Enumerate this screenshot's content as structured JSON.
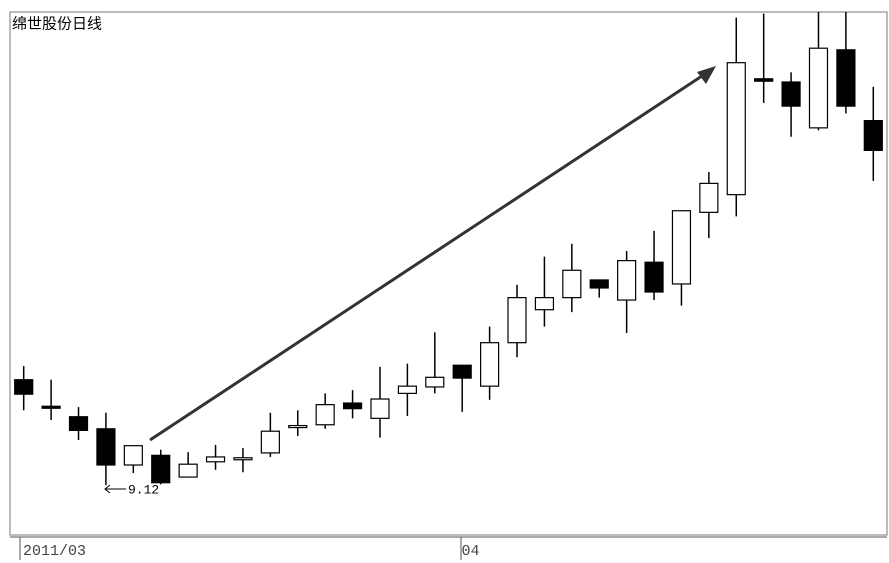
{
  "chart_data": {
    "type": "candlestick",
    "title": "绵世股份日线",
    "categories": [
      "2011/03",
      null,
      null,
      null,
      null,
      null,
      null,
      null,
      null,
      null,
      null,
      null,
      null,
      null,
      null,
      null,
      "04",
      null,
      null,
      null,
      null,
      null,
      null,
      null,
      null,
      null,
      null,
      null,
      null,
      null,
      null,
      null
    ],
    "open": [
      10.43,
      10.1,
      9.97,
      9.82,
      9.37,
      9.49,
      9.22,
      9.41,
      9.45,
      9.52,
      9.85,
      9.87,
      10.14,
      9.95,
      10.26,
      10.34,
      10.61,
      10.35,
      10.89,
      11.3,
      11.45,
      11.67,
      11.42,
      11.89,
      11.62,
      12.51,
      12.73,
      14.17,
      14.13,
      13.56,
      14.53,
      13.65
    ],
    "high": [
      10.6,
      10.43,
      10.09,
      10.02,
      9.61,
      9.56,
      9.53,
      9.62,
      9.58,
      10.02,
      10.05,
      10.26,
      10.3,
      10.59,
      10.63,
      11.02,
      10.61,
      11.09,
      11.61,
      11.96,
      12.12,
      11.67,
      12.03,
      12.28,
      12.53,
      13.01,
      14.93,
      14.98,
      14.25,
      15.0,
      15.0,
      14.07
    ],
    "low": [
      10.05,
      9.93,
      9.68,
      9.12,
      9.27,
      9.13,
      9.22,
      9.31,
      9.28,
      9.47,
      9.73,
      9.82,
      9.95,
      9.71,
      9.98,
      10.26,
      10.03,
      10.18,
      10.71,
      11.09,
      11.27,
      11.45,
      11.01,
      11.42,
      11.35,
      12.19,
      12.46,
      13.87,
      13.45,
      13.53,
      13.74,
      12.9
    ],
    "close": [
      10.25,
      10.09,
      9.8,
      9.37,
      9.61,
      9.15,
      9.38,
      9.47,
      9.46,
      9.79,
      9.86,
      10.12,
      10.07,
      10.19,
      10.35,
      10.46,
      10.45,
      10.89,
      11.45,
      11.45,
      11.79,
      11.57,
      11.91,
      11.52,
      12.53,
      12.87,
      14.37,
      14.14,
      13.83,
      14.55,
      13.83,
      13.28
    ],
    "annotations": [
      {
        "text": "9.12"
      }
    ],
    "ylim": [
      8.5,
      15.0
    ],
    "up_color": "#ffffff",
    "down_color": "#000000"
  }
}
